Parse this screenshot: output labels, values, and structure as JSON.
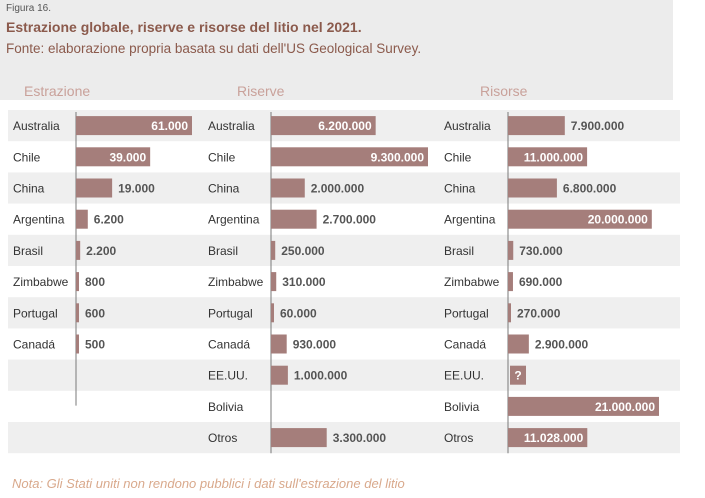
{
  "header": {
    "figure_label": "Figura 16.",
    "title": "Estrazione globale, riserve e risorse del litio nel 2021.",
    "source": "Fonte: elaborazione propria basata su dati dell'US Geological Survey."
  },
  "note": "Nota: Gli Stati uniti non rendono pubblici i dati sull'estrazione del litio",
  "colors": {
    "bar": "#a57e7b",
    "band": "#efefef",
    "panel_title": "#c9a19a",
    "axis": "#7a7a7a",
    "text": "#333333",
    "header_bg": "#ececec"
  },
  "chart_data": [
    {
      "type": "bar",
      "orientation": "horizontal",
      "title": "Estrazione",
      "categories": [
        "Australia",
        "Chile",
        "China",
        "Argentina",
        "Brasil",
        "Zimbabwe",
        "Portugal",
        "Canadá"
      ],
      "values": [
        61000,
        39000,
        19000,
        6200,
        2200,
        800,
        600,
        500
      ],
      "labels": [
        "61.000",
        "39.000",
        "19.000",
        "6.200",
        "2.200",
        "800",
        "600",
        "500"
      ]
    },
    {
      "type": "bar",
      "orientation": "horizontal",
      "title": "Riserve",
      "categories": [
        "Australia",
        "Chile",
        "China",
        "Argentina",
        "Brasil",
        "Zimbabwe",
        "Portugal",
        "Canadá",
        "EE.UU.",
        "Bolivia",
        "Otros"
      ],
      "values": [
        6200000,
        9300000,
        2000000,
        2700000,
        250000,
        310000,
        60000,
        930000,
        1000000,
        null,
        3300000
      ],
      "labels": [
        "6.200.000",
        "9.300.000",
        "2.000.000",
        "2.700.000",
        "250.000",
        "310.000",
        "60.000",
        "930.000",
        "1.000.000",
        "",
        "3.300.000"
      ]
    },
    {
      "type": "bar",
      "orientation": "horizontal",
      "title": "Risorse",
      "categories": [
        "Australia",
        "Chile",
        "China",
        "Argentina",
        "Brasil",
        "Zimbabwe",
        "Portugal",
        "Canadá",
        "EE.UU.",
        "Bolivia",
        "Otros"
      ],
      "values": [
        7900000,
        11000000,
        6800000,
        20000000,
        730000,
        690000,
        270000,
        2900000,
        null,
        21000000,
        11028000
      ],
      "labels": [
        "7.900.000",
        "11.000.000",
        "6.800.000",
        "20.000.000",
        "730.000",
        "690.000",
        "270.000",
        "2.900.000",
        "?",
        "21.000.000",
        "11.028.000"
      ]
    }
  ]
}
